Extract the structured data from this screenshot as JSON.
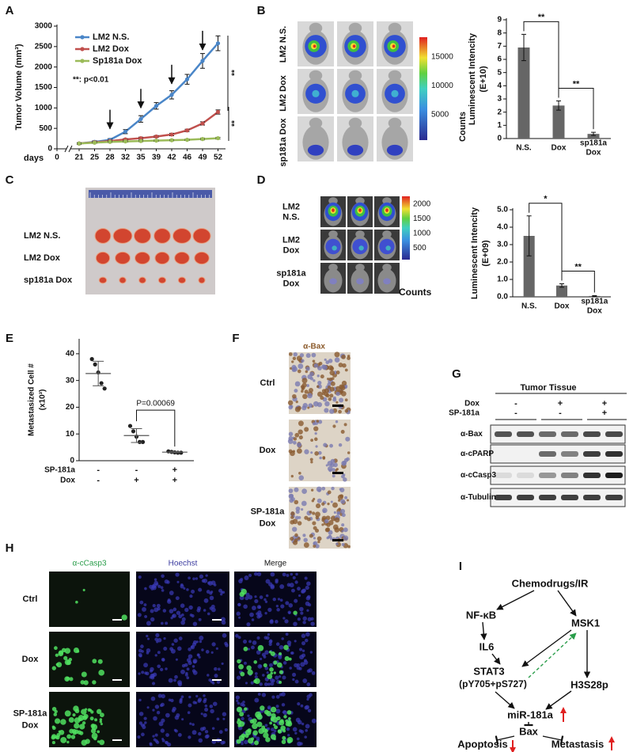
{
  "chart_data": [
    {
      "type": "line",
      "ylabel": "Tumor Volume (mm³)",
      "xlabel": "days",
      "categories": [
        "0",
        "21",
        "25",
        "28",
        "32",
        "35",
        "39",
        "42",
        "46",
        "49",
        "52"
      ],
      "series": [
        {
          "name": "LM2 N.S.",
          "color": "#4a86c8",
          "values": [
            null,
            130,
            170,
            220,
            420,
            730,
            1050,
            1320,
            1700,
            2150,
            2580
          ],
          "errors": [
            null,
            20,
            25,
            30,
            50,
            80,
            80,
            100,
            120,
            180,
            180
          ]
        },
        {
          "name": "LM2 Dox",
          "color": "#c0504d",
          "values": [
            null,
            130,
            160,
            190,
            230,
            260,
            300,
            350,
            450,
            620,
            900
          ],
          "errors": [
            null,
            15,
            15,
            20,
            20,
            25,
            25,
            30,
            30,
            40,
            50
          ]
        },
        {
          "name": "Sp181a Dox",
          "color": "#9bbb59",
          "values": [
            null,
            130,
            150,
            170,
            180,
            190,
            200,
            210,
            220,
            240,
            260
          ],
          "errors": [
            null,
            15,
            15,
            15,
            15,
            15,
            15,
            15,
            15,
            20,
            20
          ]
        }
      ],
      "ylim": [
        0,
        3000
      ],
      "yticks": [
        0,
        500,
        1000,
        1500,
        2000,
        2500,
        3000
      ],
      "annotations": [
        "**: p<0.01",
        "**",
        "**"
      ]
    },
    {
      "type": "bar",
      "ylabel": "Luminescent Intencity",
      "yunit": "(E+10)",
      "color": "#666666",
      "categories": [
        "N.S.",
        "Dox",
        [
          "sp181a",
          "Dox"
        ]
      ],
      "values": [
        6.9,
        2.5,
        0.35
      ],
      "errors": [
        1.0,
        0.35,
        0.12
      ],
      "ylim": [
        0,
        9
      ],
      "yticks": [
        0,
        1,
        2,
        3,
        4,
        5,
        6,
        7,
        8,
        9
      ],
      "annotations": [
        "**",
        "**"
      ]
    },
    {
      "type": "bar",
      "ylabel": "Luminescent Intencity",
      "yunit": "(E+09)",
      "color": "#666666",
      "categories": [
        "N.S.",
        "Dox",
        [
          "sp181a",
          "Dox"
        ]
      ],
      "values": [
        3.5,
        0.65,
        0.05
      ],
      "errors": [
        1.15,
        0.1,
        0.02
      ],
      "ylim": [
        0,
        5
      ],
      "yticks": [
        {
          "value": 0,
          "label": "0.0"
        },
        {
          "value": 1,
          "label": "1.0"
        },
        {
          "value": 2,
          "label": "2.0"
        },
        {
          "value": 3,
          "label": "3.0"
        },
        {
          "value": 4,
          "label": "4.0"
        },
        {
          "value": 5,
          "label": "5.0"
        }
      ],
      "annotations": [
        "*",
        "**"
      ]
    },
    {
      "type": "dot",
      "ylabel": "Metastasized Cell #",
      "yunit": "(x10³)",
      "color": "#222222",
      "groups": [
        {
          "values": [
            38,
            36,
            33,
            29,
            27
          ],
          "mean": 32.6,
          "sd": 4.6
        },
        {
          "values": [
            13,
            11,
            9,
            7,
            7
          ],
          "mean": 9.4,
          "sd": 2.6
        },
        {
          "values": [
            3.5,
            3.3,
            3.1,
            3,
            3
          ],
          "mean": 3.2,
          "sd": 0.2
        }
      ],
      "rows": [
        {
          "label": "SP-181a",
          "marks": [
            "-",
            "-",
            "+"
          ]
        },
        {
          "label": "Dox",
          "marks": [
            "-",
            "+",
            "+"
          ]
        }
      ],
      "ylim": [
        0,
        45
      ],
      "yticks": [
        0,
        10,
        20,
        30,
        40
      ],
      "annotations": [
        "P=0.00069"
      ]
    }
  ],
  "panels": {
    "letters": [
      "A",
      "B",
      "C",
      "D",
      "E",
      "F",
      "G",
      "H",
      "I"
    ],
    "b_images": {
      "rows": [
        "LM2 N.S.",
        "LM2 Dox",
        "sp181a Dox"
      ],
      "colorbar": {
        "clim": [
          600,
          18400
        ],
        "ticks": [
          15000,
          10000,
          5000
        ],
        "label": "Counts"
      }
    },
    "c_image": {
      "rows": [
        "LM2 N.S.",
        "LM2 Dox",
        "sp181a Dox"
      ]
    },
    "d_images": {
      "rows": [
        [
          "LM2",
          "N.S."
        ],
        [
          "LM2",
          "Dox"
        ],
        [
          "sp181a",
          "Dox"
        ]
      ],
      "colorbar": {
        "clim": [
          100,
          2270
        ],
        "ticks": [
          2000,
          1500,
          1000,
          500
        ],
        "label": "Counts"
      }
    },
    "f_ihc": {
      "stain": "α-Bax",
      "rows": [
        "Ctrl",
        "Dox",
        [
          "SP-181a",
          "Dox"
        ]
      ]
    },
    "g_blot": {
      "header": "Tumor Tissue",
      "conditions": [
        {
          "label": "Dox",
          "marks": [
            "-",
            "+",
            "+"
          ]
        },
        {
          "label": "SP-181a",
          "marks": [
            "-",
            "-",
            "+"
          ]
        }
      ],
      "bands": [
        "α-Bax",
        "α-cPARP",
        "α-cCasp3",
        "α-Tubulin"
      ]
    },
    "h_if": {
      "columns": [
        "α-cCasp3",
        "Hoechst",
        "Merge"
      ],
      "rows": [
        "Ctrl",
        "Dox",
        [
          "SP-181a",
          "Dox"
        ]
      ]
    },
    "i_diagram": {
      "nodes": [
        "Chemodrugs/IR",
        "NF-κB",
        "MSK1",
        "IL6",
        "STAT3",
        "(pY705+pS727)",
        "H3S28p",
        "miR-181a",
        "Bax",
        "Apoptosis",
        "Metastasis"
      ]
    }
  }
}
